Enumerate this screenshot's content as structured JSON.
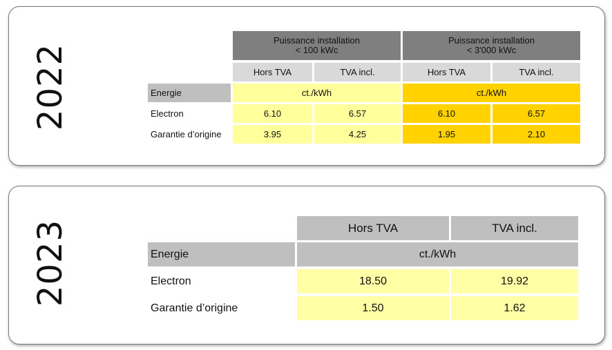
{
  "table_2022": {
    "year": "2022",
    "group_headers": [
      "Puissance installation\n< 100 kWc",
      "Puissance installation\n< 3'000 kWc"
    ],
    "sub_headers": [
      "Hors TVA",
      "TVA incl.",
      "Hors TVA",
      "TVA incl."
    ],
    "unit_label": "Energie",
    "unit": "ct./kWh",
    "rows": [
      {
        "label": "Electron",
        "values": [
          "6.10",
          "6.57",
          "6.10",
          "6.57"
        ]
      },
      {
        "label": "Garantie d’origine",
        "values": [
          "3.95",
          "4.25",
          "1.95",
          "2.10"
        ]
      }
    ],
    "colors": {
      "header": "#7f7f7f",
      "subheader": "#d9d9d9",
      "light_yellow": "#ffff9b",
      "gold": "#ffd200"
    }
  },
  "table_2023": {
    "year": "2023",
    "sub_headers": [
      "Hors TVA",
      "TVA incl."
    ],
    "unit_label": "Energie",
    "unit": "ct./kWh",
    "rows": [
      {
        "label": "Electron",
        "values": [
          "18.50",
          "19.92"
        ]
      },
      {
        "label": "Garantie d’origine",
        "values": [
          "1.50",
          "1.62"
        ]
      }
    ],
    "colors": {
      "header": "#bfbfbf",
      "light_yellow": "#ffffa6"
    }
  }
}
